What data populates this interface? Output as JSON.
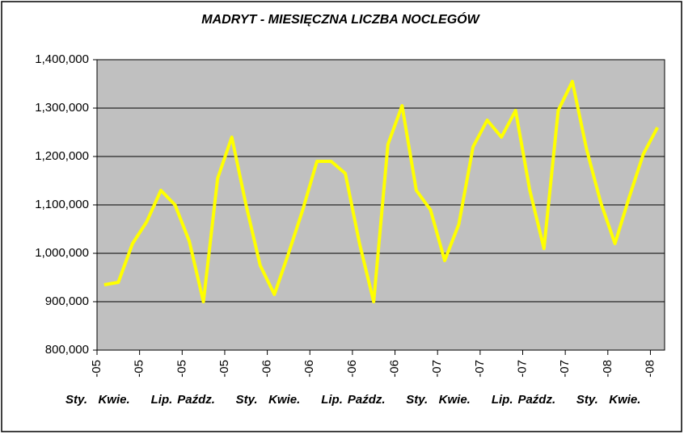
{
  "chart_data": {
    "type": "line",
    "title": "MADRYT - MIESIĘCZNA LICZBA NOCLEGÓW",
    "categories": [
      "Sty.",
      null,
      null,
      "Kwie.",
      null,
      null,
      "Lip.",
      null,
      null,
      "Paźdz.",
      null,
      null,
      "Sty.",
      null,
      null,
      "Kwie.",
      null,
      null,
      "Lip.",
      null,
      null,
      "Paźdz.",
      null,
      null,
      "Sty.",
      null,
      null,
      "Kwie.",
      null,
      null,
      "Lip.",
      null,
      null,
      "Paźdz.",
      null,
      null,
      "Sty.",
      null,
      null,
      "Kwie."
    ],
    "category_years": [
      "-05",
      null,
      null,
      "-05",
      null,
      null,
      "-05",
      null,
      null,
      "-05",
      null,
      null,
      "-06",
      null,
      null,
      "-06",
      null,
      null,
      "-06",
      null,
      null,
      "-06",
      null,
      null,
      "-07",
      null,
      null,
      "-07",
      null,
      null,
      "-07",
      null,
      null,
      "-07",
      null,
      null,
      "-08",
      null,
      null,
      "-08"
    ],
    "series": [
      {
        "name": "Liczba noclegów",
        "color": "#ffff00",
        "values": [
          935000,
          940000,
          1020000,
          1065000,
          1130000,
          1100000,
          1025000,
          900000,
          1155000,
          1240000,
          1100000,
          975000,
          915000,
          1000000,
          1090000,
          1190000,
          1190000,
          1165000,
          1020000,
          900000,
          1225000,
          1305000,
          1130000,
          1090000,
          985000,
          1060000,
          1220000,
          1275000,
          1240000,
          1295000,
          1130000,
          1010000,
          1295000,
          1355000,
          1215000,
          1105000,
          1020000,
          1115000,
          1205000,
          1260000
        ]
      }
    ],
    "ylim": [
      800000,
      1400000
    ],
    "yticks": [
      {
        "value": 800000,
        "label": "800,000"
      },
      {
        "value": 900000,
        "label": "900,000"
      },
      {
        "value": 1000000,
        "label": "1,000,000"
      },
      {
        "value": 1100000,
        "label": "1,100,000"
      },
      {
        "value": 1200000,
        "label": "1,200,000"
      },
      {
        "value": 1300000,
        "label": "1,300,000"
      },
      {
        "value": 1400000,
        "label": "1,400,000"
      }
    ],
    "grid": true
  }
}
